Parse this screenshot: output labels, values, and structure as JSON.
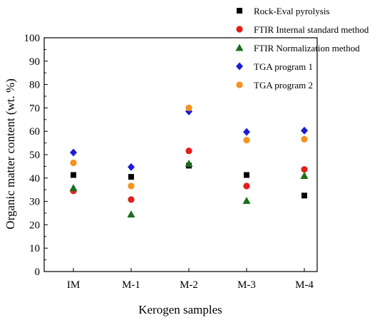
{
  "chart_data": {
    "type": "scatter",
    "title": "",
    "xlabel": "Kerogen samples",
    "ylabel": "Organic matter content (wt. %)",
    "categories": [
      "IM",
      "M-1",
      "M-2",
      "M-3",
      "M-4"
    ],
    "ylim": [
      0,
      100
    ],
    "yticks": [
      0,
      10,
      20,
      30,
      40,
      50,
      60,
      70,
      80,
      90,
      100
    ],
    "grid": false,
    "legend_position": "top-right",
    "series": [
      {
        "name": "Rock-Eval pyrolysis",
        "marker": "square",
        "color": "#000000",
        "values": [
          41.3,
          40.5,
          45.3,
          41.3,
          32.5
        ]
      },
      {
        "name": "FTIR Internal standard method",
        "marker": "circle",
        "color": "#e0201b",
        "values": [
          34.5,
          30.8,
          51.6,
          36.6,
          43.7
        ]
      },
      {
        "name": "FTIR Normalization method",
        "marker": "triangle",
        "color": "#1b6e1b",
        "values": [
          35.8,
          24.5,
          46.2,
          30.3,
          41.0
        ]
      },
      {
        "name": "TGA program 1",
        "marker": "diamond",
        "color": "#1c1cd8",
        "values": [
          50.9,
          44.7,
          68.5,
          59.7,
          60.3
        ]
      },
      {
        "name": "TGA program 2",
        "marker": "circle",
        "color": "#f5921e",
        "values": [
          46.5,
          36.6,
          70.0,
          56.2,
          56.6
        ]
      }
    ]
  }
}
